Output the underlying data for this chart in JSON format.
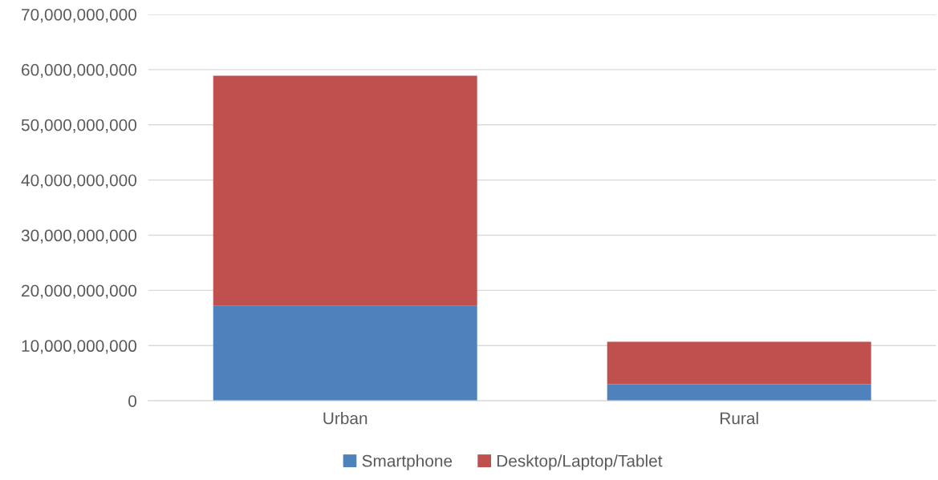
{
  "chart_data": {
    "type": "bar",
    "stacked": true,
    "categories": [
      "Urban",
      "Rural"
    ],
    "series": [
      {
        "name": "Smartphone",
        "color": "#4f81bd",
        "values": [
          17200000000,
          3000000000
        ]
      },
      {
        "name": "Desktop/Laptop/Tablet",
        "color": "#c0504d",
        "values": [
          41700000000,
          7700000000
        ]
      }
    ],
    "ylim": [
      0,
      70000000000
    ],
    "yticks": [
      0,
      {
        "value": 10000000000,
        "label": "10,000,000,000"
      },
      {
        "value": 20000000000,
        "label": "20,000,000,000"
      },
      {
        "value": 30000000000,
        "label": "30,000,000,000"
      },
      {
        "value": 40000000000,
        "label": "40,000,000,000"
      },
      {
        "value": 50000000000,
        "label": "50,000,000,000"
      },
      {
        "value": 60000000000,
        "label": "60,000,000,000"
      },
      {
        "value": 70000000000,
        "label": "70,000,000,000"
      }
    ],
    "grid": "y",
    "legend": "bottom"
  }
}
